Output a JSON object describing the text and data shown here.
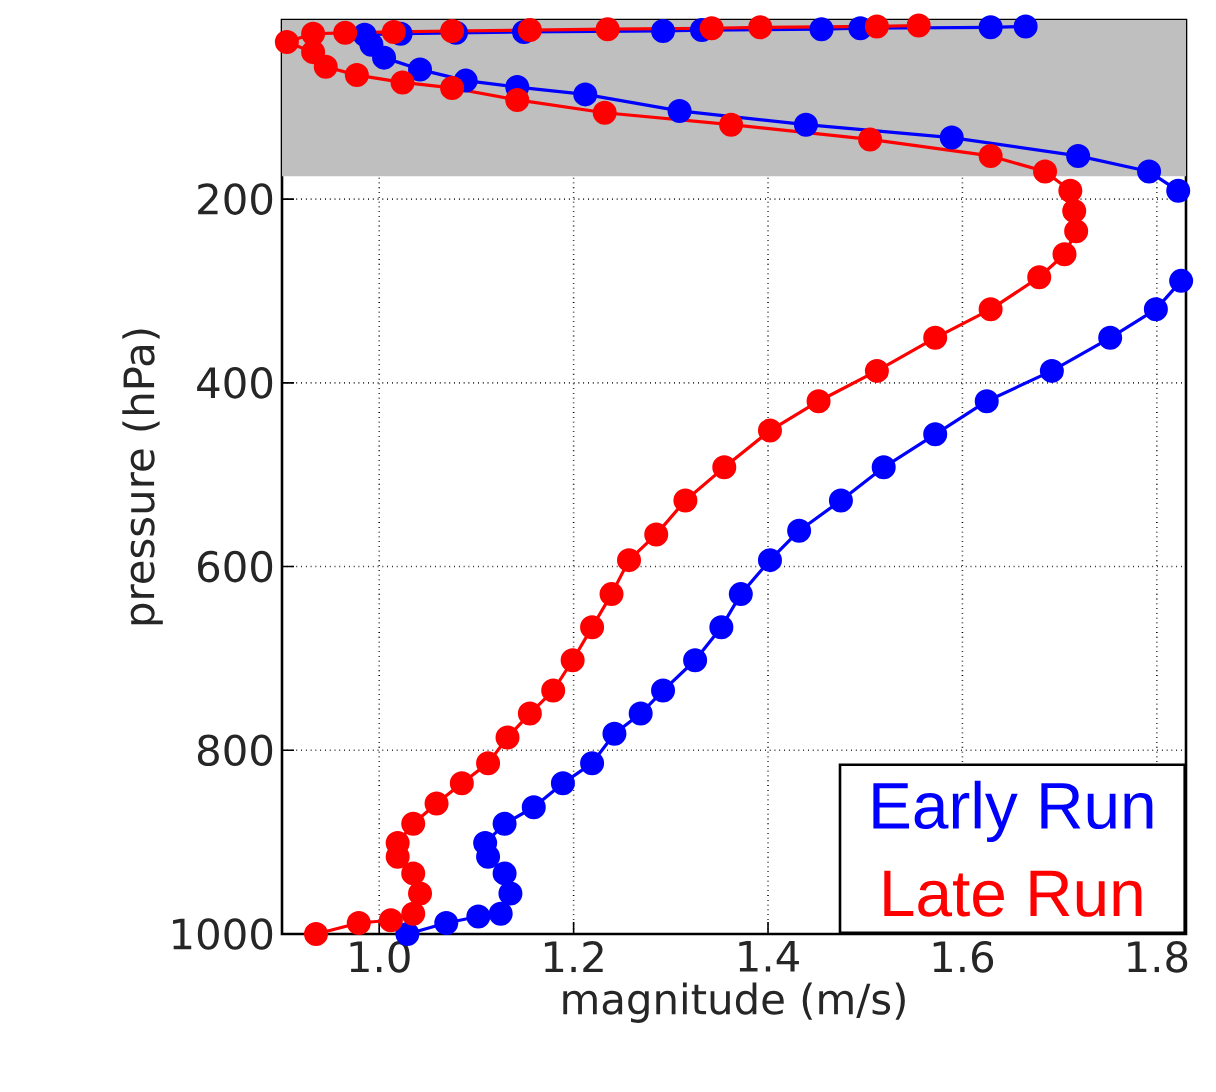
{
  "chart_data": {
    "type": "line",
    "xlabel": "magnitude (m/s)",
    "ylabel": "pressure (hPa)",
    "xlim": [
      0.9,
      1.83
    ],
    "ylim": [
      1000,
      5
    ],
    "xticks": [
      {
        "value": 1.0,
        "label": "1.0"
      },
      {
        "value": 1.2,
        "label": "1.2"
      },
      {
        "value": 1.4,
        "label": "1.4"
      },
      {
        "value": 1.6,
        "label": "1.6"
      },
      {
        "value": 1.8,
        "label": "1.8"
      }
    ],
    "yticks": [
      200,
      400,
      600,
      800,
      1000
    ],
    "grid": true,
    "marker": "circle",
    "line_style": "solid",
    "legend": "bottom right",
    "bands": [
      {
        "axis": "y",
        "from": 5,
        "to": 175,
        "color": "#bfbfbf"
      }
    ],
    "series": [
      {
        "name": "Early Run",
        "color": "#0000ff",
        "x": [
          1.029,
          1.069,
          1.102,
          1.125,
          1.135,
          1.129,
          1.112,
          1.109,
          1.129,
          1.159,
          1.189,
          1.219,
          1.242,
          1.269,
          1.292,
          1.325,
          1.352,
          1.372,
          1.402,
          1.432,
          1.475,
          1.519,
          1.572,
          1.625,
          1.692,
          1.752,
          1.799,
          1.825,
          null,
          1.822,
          1.792,
          1.719,
          1.589,
          1.439,
          1.309,
          1.212,
          1.142,
          1.089,
          1.042,
          1.005,
          0.992,
          0.985,
          1.022,
          1.079,
          1.149,
          1.292,
          1.332,
          1.455,
          1.495,
          1.629,
          1.665
        ],
        "values": [
          1000,
          988,
          981,
          978,
          956,
          934,
          916,
          901,
          880,
          862,
          836,
          814,
          782,
          760,
          735,
          702,
          666,
          630,
          593,
          561,
          528,
          492,
          456,
          420,
          387,
          351,
          320,
          289,
          null,
          191,
          170,
          153,
          133,
          119,
          104,
          86,
          78,
          71,
          59,
          46,
          32,
          21,
          20,
          19,
          18,
          17,
          16,
          15,
          14,
          13,
          12
        ]
      },
      {
        "name": "Late Run",
        "color": "#ff0000",
        "x": [
          0.935,
          0.979,
          1.012,
          1.035,
          1.042,
          1.035,
          1.019,
          1.019,
          1.035,
          1.059,
          1.085,
          1.112,
          1.132,
          1.155,
          1.179,
          1.199,
          1.219,
          1.239,
          1.257,
          1.285,
          1.315,
          1.355,
          1.402,
          1.452,
          1.512,
          1.572,
          1.629,
          1.679,
          1.705,
          1.717,
          1.715,
          1.711,
          1.685,
          1.629,
          1.505,
          1.362,
          1.232,
          1.142,
          1.075,
          1.024,
          0.977,
          0.945,
          0.932,
          0.905,
          0.932,
          0.965,
          1.015,
          1.075,
          1.155,
          1.235,
          1.342,
          1.392,
          1.512,
          1.555
        ],
        "values": [
          1000,
          988,
          985,
          978,
          956,
          934,
          916,
          901,
          880,
          858,
          836,
          814,
          786,
          760,
          735,
          702,
          666,
          630,
          593,
          565,
          528,
          492,
          452,
          420,
          387,
          351,
          320,
          285,
          260,
          235,
          213,
          191,
          170,
          153,
          135,
          119,
          106,
          92,
          79,
          73,
          65,
          56,
          40,
          29,
          20,
          19,
          18,
          17,
          16,
          15,
          14,
          13,
          12,
          11
        ]
      }
    ]
  }
}
